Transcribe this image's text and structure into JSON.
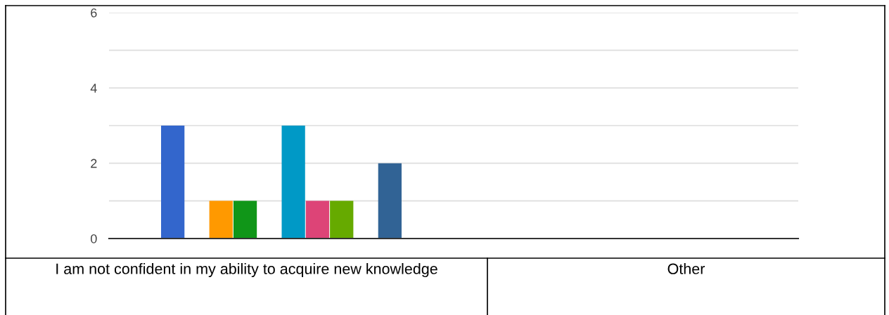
{
  "chart_data": {
    "type": "bar",
    "categories": [
      null,
      null
    ],
    "series": [
      {
        "color": "#3366cc",
        "values": [
          3,
          0
        ]
      },
      {
        "color": "#dc3912",
        "values": [
          0,
          0
        ]
      },
      {
        "color": "#ff9900",
        "values": [
          1,
          0
        ]
      },
      {
        "color": "#109618",
        "values": [
          1,
          0
        ]
      },
      {
        "color": "#990099",
        "values": [
          0,
          0
        ]
      },
      {
        "color": "#0099c6",
        "values": [
          3,
          0
        ]
      },
      {
        "color": "#dd4477",
        "values": [
          1,
          0
        ]
      },
      {
        "color": "#66aa00",
        "values": [
          1,
          0
        ]
      },
      {
        "color": "#b82e2e",
        "values": [
          0,
          0
        ]
      },
      {
        "color": "#316395",
        "values": [
          2,
          0
        ]
      }
    ],
    "ylim": [
      0,
      6
    ],
    "yticks": [
      0,
      {
        "value": 1,
        "label": null
      },
      2,
      {
        "value": 3,
        "label": null
      },
      4,
      {
        "value": 5,
        "label": null
      },
      6
    ],
    "grid": "y",
    "legend": false,
    "annotations": [
      "I am not confident in my ability to acquire new knowledge",
      "Other"
    ]
  }
}
